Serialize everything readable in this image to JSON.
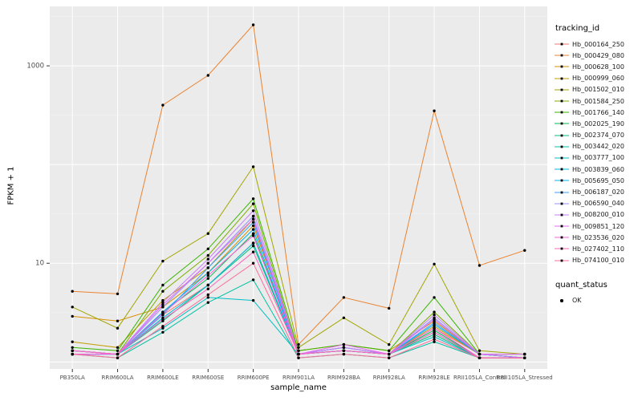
{
  "chart_data": {
    "type": "line",
    "title": "",
    "xlabel": "sample_name",
    "ylabel": "FPKM + 1",
    "y_scale": "log10",
    "ylim": [
      0.85,
      4000
    ],
    "y_ticks": [
      10,
      1000
    ],
    "y_minor": [
      1,
      3.162,
      31.62,
      100,
      316.2,
      3162
    ],
    "grid": true,
    "panel_color": "#EBEBEB",
    "grid_major_color": "#FFFFFF",
    "grid_minor_color": "#F4F4F4",
    "point_color": "#000000",
    "axis_text_color": "#4D4D4D",
    "legend_position": "right",
    "categories": [
      "PB350LA",
      "RRIM600LA",
      "RRIM600LE",
      "RRIM600SE",
      "RRIM600PE",
      "RRIM901LA",
      "RRIM928BA",
      "RRIM928LA",
      "RRIM928LE",
      "RRII105LA_Control",
      "RRII105LA_Stressed"
    ],
    "series": [
      {
        "name": "Hb_000164_250",
        "color": "#F8766D",
        "values": [
          1.3,
          1.2,
          3.0,
          6.0,
          16,
          1.2,
          1.4,
          1.2,
          2.2,
          1.2,
          1.1
        ]
      },
      {
        "name": "Hb_000429_080",
        "color": "#EA8331",
        "values": [
          5.2,
          4.9,
          400,
          800,
          2600,
          1.5,
          4.5,
          3.5,
          350,
          9.5,
          13.5
        ]
      },
      {
        "name": "Hb_000628_100",
        "color": "#D89000",
        "values": [
          2.9,
          2.6,
          3.6,
          8.0,
          24,
          1.3,
          1.5,
          1.3,
          2.6,
          1.2,
          1.2
        ]
      },
      {
        "name": "Hb_000999_060",
        "color": "#C09B00",
        "values": [
          1.6,
          1.4,
          4.2,
          9.0,
          28,
          1.2,
          1.3,
          1.2,
          2.3,
          1.2,
          1.1
        ]
      },
      {
        "name": "Hb_001502_010",
        "color": "#A3A500",
        "values": [
          3.6,
          2.2,
          10.5,
          20,
          95,
          1.4,
          2.8,
          1.5,
          9.8,
          1.3,
          1.2
        ]
      },
      {
        "name": "Hb_001584_250",
        "color": "#7CAE00",
        "values": [
          1.3,
          1.2,
          5.2,
          12,
          40,
          1.2,
          1.4,
          1.2,
          3.2,
          1.2,
          1.1
        ]
      },
      {
        "name": "Hb_001766_140",
        "color": "#39B600",
        "values": [
          1.4,
          1.3,
          6.0,
          14,
          45,
          1.3,
          1.5,
          1.3,
          4.5,
          1.2,
          1.2
        ]
      },
      {
        "name": "Hb_002025_190",
        "color": "#00BB4E",
        "values": [
          1.2,
          1.2,
          3.2,
          7.0,
          20,
          1.2,
          1.3,
          1.2,
          2.1,
          1.1,
          1.1
        ]
      },
      {
        "name": "Hb_002374_070",
        "color": "#00BF7D",
        "values": [
          1.3,
          1.2,
          2.6,
          6.0,
          15,
          1.2,
          1.3,
          1.2,
          1.9,
          1.1,
          1.1
        ]
      },
      {
        "name": "Hb_003442_020",
        "color": "#00C1A3",
        "values": [
          1.2,
          1.1,
          2.0,
          4.0,
          6.8,
          1.1,
          1.2,
          1.1,
          1.6,
          1.1,
          1.1
        ]
      },
      {
        "name": "Hb_003777_100",
        "color": "#00BFC4",
        "values": [
          1.3,
          1.2,
          2.2,
          4.5,
          4.2,
          1.2,
          1.3,
          1.2,
          1.8,
          1.1,
          1.1
        ]
      },
      {
        "name": "Hb_003839_060",
        "color": "#00BAE0",
        "values": [
          1.2,
          1.2,
          2.8,
          6.0,
          16,
          1.2,
          1.3,
          1.2,
          2.0,
          1.1,
          1.1
        ]
      },
      {
        "name": "Hb_005695_050",
        "color": "#00B0F6",
        "values": [
          1.3,
          1.2,
          3.2,
          8.0,
          22,
          1.2,
          1.4,
          1.2,
          2.4,
          1.2,
          1.1
        ]
      },
      {
        "name": "Hb_006187_020",
        "color": "#35A2FF",
        "values": [
          1.2,
          1.2,
          3.0,
          9.0,
          26,
          1.2,
          1.3,
          1.2,
          2.5,
          1.2,
          1.1
        ]
      },
      {
        "name": "Hb_006590_040",
        "color": "#9590FF",
        "values": [
          1.3,
          1.2,
          3.6,
          10,
          30,
          1.2,
          1.4,
          1.2,
          2.8,
          1.2,
          1.2
        ]
      },
      {
        "name": "Hb_008200_010",
        "color": "#C77CFF",
        "values": [
          1.2,
          1.2,
          4.0,
          11,
          34,
          1.2,
          1.4,
          1.2,
          3.0,
          1.2,
          1.1
        ]
      },
      {
        "name": "Hb_009851_120",
        "color": "#E76BF3",
        "values": [
          1.3,
          1.2,
          3.8,
          10,
          28,
          1.2,
          1.5,
          1.2,
          2.7,
          1.2,
          1.2
        ]
      },
      {
        "name": "Hb_023536_020",
        "color": "#FA62DB",
        "values": [
          1.2,
          1.2,
          3.1,
          7.5,
          19,
          1.2,
          1.3,
          1.2,
          2.2,
          1.1,
          1.1
        ]
      },
      {
        "name": "Hb_027402_110",
        "color": "#FF62BC",
        "values": [
          1.3,
          1.2,
          2.7,
          5.5,
          13,
          1.2,
          1.3,
          1.2,
          2.0,
          1.1,
          1.1
        ]
      },
      {
        "name": "Hb_074100_010",
        "color": "#FF6A98",
        "values": [
          1.2,
          1.1,
          2.3,
          4.8,
          10,
          1.1,
          1.2,
          1.1,
          1.7,
          1.1,
          1.1
        ]
      }
    ],
    "legend": {
      "tracking_title": "tracking_id",
      "quant_title": "quant_status",
      "quant_items": [
        {
          "label": "OK"
        }
      ]
    }
  }
}
